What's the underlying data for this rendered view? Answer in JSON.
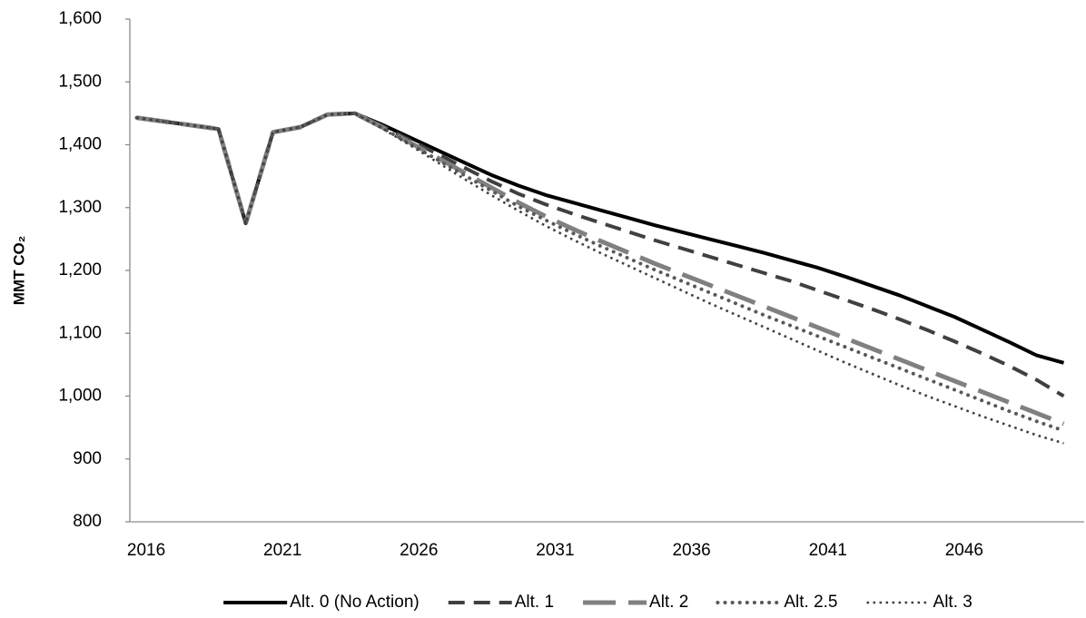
{
  "chart_data": {
    "type": "line",
    "y_label": "MMT CO₂",
    "categories": [
      "2016",
      null,
      null,
      null,
      null,
      "2021",
      null,
      null,
      null,
      null,
      "2026",
      null,
      null,
      null,
      null,
      "2031",
      null,
      null,
      null,
      null,
      "2036",
      null,
      null,
      null,
      null,
      "2041",
      null,
      null,
      null,
      null,
      "2046",
      null,
      null,
      null,
      null
    ],
    "ylim": [
      800,
      1600
    ],
    "yticks": [
      800,
      900,
      {
        "value": 1000,
        "label": "1,000"
      },
      {
        "value": 1100,
        "label": "1,100"
      },
      {
        "value": 1200,
        "label": "1,200"
      },
      {
        "value": 1300,
        "label": "1,300"
      },
      {
        "value": 1400,
        "label": "1,400"
      },
      {
        "value": 1500,
        "label": "1,500"
      },
      {
        "value": 1600,
        "label": "1,600"
      }
    ],
    "grid": false,
    "legend": "bottom",
    "series": [
      {
        "name": "Alt. 0 (No Action)",
        "color": "#000000",
        "dash": "solid",
        "values": [
          1443,
          1437,
          1431,
          1425,
          1275,
          1420,
          1428,
          1448,
          1450,
          1432,
          1412,
          1392,
          1372,
          1352,
          1335,
          1320,
          1308,
          1296,
          1284,
          1272,
          1261,
          1250,
          1239,
          1228,
          1216,
          1204,
          1190,
          1175,
          1160,
          1143,
          1126,
          1106,
          1086,
          1065,
          1053
        ]
      },
      {
        "name": "Alt. 1",
        "color": "#404040",
        "dash": "dash",
        "values": [
          1443,
          1437,
          1431,
          1425,
          1275,
          1420,
          1428,
          1448,
          1450,
          1430,
          1408,
          1386,
          1364,
          1342,
          1322,
          1305,
          1290,
          1276,
          1262,
          1248,
          1235,
          1222,
          1209,
          1196,
          1183,
          1168,
          1153,
          1138,
          1122,
          1105,
          1087,
          1068,
          1048,
          1026,
          1000
        ]
      },
      {
        "name": "Alt. 2",
        "color": "#808080",
        "dash": "longdash",
        "values": [
          1443,
          1437,
          1431,
          1425,
          1275,
          1420,
          1428,
          1448,
          1450,
          1428,
          1404,
          1380,
          1356,
          1332,
          1308,
          1286,
          1266,
          1247,
          1229,
          1211,
          1194,
          1177,
          1160,
          1143,
          1126,
          1109,
          1092,
          1075,
          1058,
          1041,
          1024,
          1007,
          990,
          973,
          956
        ]
      },
      {
        "name": "Alt. 2.5",
        "color": "#595959",
        "dash": "rounddot",
        "values": [
          1443,
          1437,
          1431,
          1425,
          1275,
          1420,
          1428,
          1448,
          1450,
          1427,
          1402,
          1377,
          1352,
          1327,
          1302,
          1280,
          1259,
          1239,
          1220,
          1201,
          1183,
          1165,
          1147,
          1129,
          1112,
          1095,
          1078,
          1061,
          1044,
          1027,
          1010,
          993,
          976,
          960,
          945
        ]
      },
      {
        "name": "Alt. 3",
        "color": "#404040",
        "dash": "dot",
        "values": [
          1443,
          1437,
          1431,
          1425,
          1275,
          1420,
          1428,
          1448,
          1450,
          1426,
          1400,
          1373,
          1346,
          1320,
          1295,
          1271,
          1249,
          1228,
          1208,
          1188,
          1168,
          1148,
          1129,
          1110,
          1091,
          1072,
          1053,
          1035,
          1017,
          1000,
          984,
          968,
          953,
          938,
          925
        ]
      }
    ]
  }
}
